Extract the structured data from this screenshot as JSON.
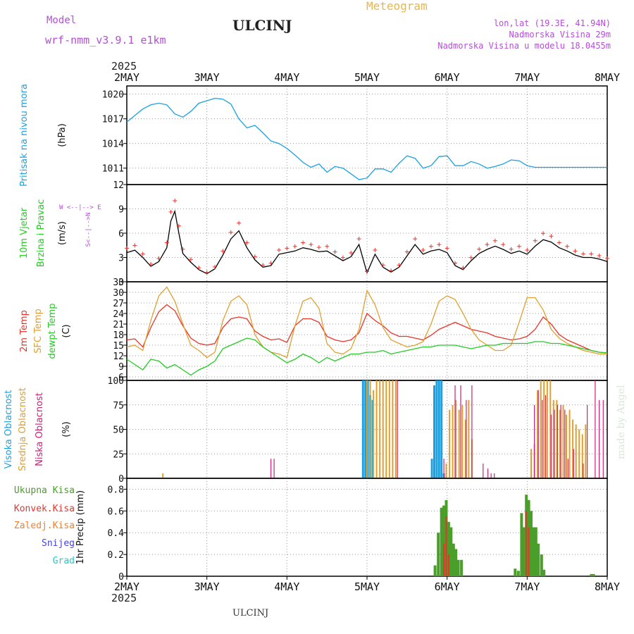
{
  "header": {
    "model_label": "Model",
    "model_name": "wrf-nmm_v3.9.1 e1km",
    "station": "ULCINJ",
    "meteogram": "Meteogram",
    "lonlat": "lon,lat (19.3E, 41.94N)",
    "elevation": "Nadmorska Visina 29m",
    "model_elevation": "Nadmorska Visina u modelu 18.0455m",
    "year_top": "2025",
    "year_bottom": "2025",
    "footer": "ULCINJ",
    "watermark": "made by Angel"
  },
  "colors": {
    "pressure": "#1ba1e2",
    "t2m": "#e8342b",
    "tsfc": "#e0a030",
    "dewpt": "#22cc22",
    "wind_speed": "#000000",
    "gust_marker": "#e8342b",
    "high_cloud": "#1ba1e2",
    "mid_cloud": "#e0a030",
    "low_cloud": "#cc2277",
    "precip_total": "#4a9e2a",
    "precip_conv": "#e8342b",
    "precip_large": "#f08030",
    "snow": "#4444dd",
    "hail": "#22cccc"
  },
  "chart_data": [
    {
      "type": "line",
      "panel": "pressure",
      "ylabel": "(hPa)",
      "side_labels": [
        "Pritisak na nivou mora"
      ],
      "x_ticks": [
        "2MAY",
        "3MAY",
        "4MAY",
        "5MAY",
        "6MAY",
        "7MAY",
        "8MAY"
      ],
      "ylim": [
        1009,
        1021
      ],
      "yticks": [
        1011,
        1014,
        1017,
        1020
      ],
      "grid": true,
      "series": [
        {
          "name": "Pritisak na nivou mora",
          "x": [
            0,
            0.1,
            0.2,
            0.3,
            0.4,
            0.5,
            0.6,
            0.7,
            0.8,
            0.9,
            1.0,
            1.1,
            1.2,
            1.3,
            1.4,
            1.5,
            1.6,
            1.7,
            1.8,
            1.9,
            2.0,
            2.1,
            2.2,
            2.3,
            2.4,
            2.5,
            2.6,
            2.7,
            2.8,
            2.9,
            3.0,
            3.1,
            3.2,
            3.3,
            3.4,
            3.5,
            3.6,
            3.7,
            3.8,
            3.9,
            4.0,
            4.1,
            4.2,
            4.3,
            4.4,
            4.5,
            4.6,
            4.7,
            4.8,
            4.9,
            5.0,
            5.1,
            5.2,
            5.3,
            5.4,
            5.5,
            5.6,
            5.7,
            5.8,
            5.9,
            6.0
          ],
          "values": [
            1016.6,
            1017.4,
            1018.2,
            1018.7,
            1018.9,
            1018.7,
            1017.6,
            1017.2,
            1017.9,
            1018.9,
            1019.2,
            1019.5,
            1019.4,
            1018.8,
            1017.0,
            1015.9,
            1016.2,
            1015.3,
            1014.3,
            1014.0,
            1013.4,
            1012.6,
            1011.7,
            1011.1,
            1011.5,
            1010.5,
            1011.2,
            1011.0,
            1010.3,
            1009.6,
            1009.8,
            1010.9,
            1010.9,
            1010.5,
            1011.6,
            1012.5,
            1012.2,
            1011.0,
            1011.3,
            1012.4,
            1012.5,
            1011.3,
            1011.3,
            1011.8,
            1011.5,
            1011.0,
            1011.2,
            1011.5,
            1012.0,
            1011.9,
            1011.3,
            1011.1,
            1011.1,
            1011.1,
            1011.1,
            1011.1,
            1011.1,
            1011.1,
            1011.1,
            1011.1,
            1011.1
          ]
        }
      ]
    },
    {
      "type": "line",
      "panel": "wind",
      "ylabel": "(m/s)",
      "side_labels": [
        "10m Vjetar",
        "Brzina i Pravac"
      ],
      "compass": "W  <--|-->  E",
      "compass_ns": "S<--|-->N",
      "ylim": [
        0,
        12
      ],
      "yticks": [
        0,
        3,
        6,
        9,
        12
      ],
      "grid": true,
      "series": [
        {
          "name": "Brzina",
          "x": [
            0,
            0.1,
            0.2,
            0.3,
            0.4,
            0.5,
            0.55,
            0.6,
            0.65,
            0.7,
            0.8,
            0.9,
            1.0,
            1.1,
            1.2,
            1.3,
            1.4,
            1.5,
            1.6,
            1.7,
            1.8,
            1.9,
            2.0,
            2.1,
            2.2,
            2.3,
            2.4,
            2.5,
            2.6,
            2.7,
            2.8,
            2.9,
            3.0,
            3.1,
            3.2,
            3.3,
            3.4,
            3.5,
            3.6,
            3.7,
            3.8,
            3.9,
            4.0,
            4.1,
            4.2,
            4.3,
            4.4,
            4.5,
            4.6,
            4.7,
            4.8,
            4.9,
            5.0,
            5.1,
            5.2,
            5.3,
            5.4,
            5.5,
            5.6,
            5.7,
            5.8,
            5.9,
            6.0
          ],
          "values": [
            3.6,
            3.9,
            3.0,
            1.9,
            2.5,
            4.2,
            7.5,
            8.7,
            6.0,
            3.5,
            2.4,
            1.5,
            1.0,
            1.6,
            3.3,
            5.3,
            6.3,
            4.2,
            2.7,
            1.8,
            2.0,
            3.4,
            3.6,
            3.8,
            4.2,
            4.0,
            3.7,
            3.8,
            3.2,
            2.6,
            3.1,
            4.6,
            1.1,
            3.4,
            1.8,
            1.2,
            1.8,
            3.2,
            4.6,
            3.4,
            3.8,
            4.0,
            3.6,
            2.0,
            1.5,
            2.6,
            3.5,
            4.0,
            4.4,
            4.0,
            3.5,
            3.8,
            3.4,
            4.4,
            5.2,
            4.9,
            4.2,
            3.8,
            3.3,
            3.0,
            3.0,
            2.8,
            2.5
          ]
        }
      ]
    },
    {
      "type": "line",
      "panel": "temperature",
      "ylabel": "(C)",
      "side_labels": [
        "2m Temp",
        "SFC Temp",
        "dewpt Temp"
      ],
      "ylim": [
        5,
        33
      ],
      "yticks": [
        6,
        9,
        12,
        15,
        18,
        21,
        24,
        27,
        30,
        33
      ],
      "grid": true,
      "series": [
        {
          "name": "2m Temp",
          "x": [
            0,
            0.1,
            0.2,
            0.3,
            0.4,
            0.5,
            0.6,
            0.7,
            0.8,
            0.9,
            1.0,
            1.1,
            1.2,
            1.3,
            1.4,
            1.5,
            1.6,
            1.7,
            1.8,
            1.9,
            2.0,
            2.1,
            2.2,
            2.3,
            2.4,
            2.5,
            2.6,
            2.7,
            2.8,
            2.9,
            3.0,
            3.1,
            3.2,
            3.3,
            3.4,
            3.5,
            3.6,
            3.7,
            3.8,
            3.9,
            4.0,
            4.1,
            4.2,
            4.3,
            4.4,
            4.5,
            4.6,
            4.7,
            4.8,
            4.9,
            5.0,
            5.1,
            5.2,
            5.3,
            5.4,
            5.5,
            5.6,
            5.7,
            5.8,
            5.9,
            6.0
          ],
          "values": [
            16.5,
            16.8,
            14.5,
            20.0,
            24.5,
            26.5,
            24.8,
            20.5,
            17.0,
            15.5,
            15.0,
            15.5,
            20.0,
            22.5,
            23.0,
            22.5,
            19.0,
            17.5,
            16.5,
            16.8,
            15.8,
            20.5,
            22.5,
            22.5,
            21.5,
            17.5,
            16.5,
            16.0,
            16.5,
            18.5,
            24.0,
            22.0,
            20.5,
            18.5,
            17.5,
            17.5,
            17.0,
            16.5,
            17.8,
            19.5,
            20.5,
            21.5,
            20.5,
            19.5,
            19.0,
            18.5,
            17.5,
            17.0,
            16.5,
            16.8,
            17.5,
            19.5,
            23.0,
            21.0,
            18.0,
            16.5,
            15.5,
            14.5,
            13.5,
            13.0,
            12.8
          ]
        },
        {
          "name": "SFC Temp",
          "x": [
            0,
            0.1,
            0.2,
            0.3,
            0.4,
            0.5,
            0.6,
            0.7,
            0.8,
            0.9,
            1.0,
            1.1,
            1.2,
            1.3,
            1.4,
            1.5,
            1.6,
            1.7,
            1.8,
            1.9,
            2.0,
            2.1,
            2.2,
            2.3,
            2.4,
            2.5,
            2.6,
            2.7,
            2.8,
            2.9,
            3.0,
            3.1,
            3.2,
            3.3,
            3.4,
            3.5,
            3.6,
            3.7,
            3.8,
            3.9,
            4.0,
            4.1,
            4.2,
            4.3,
            4.4,
            4.5,
            4.6,
            4.7,
            4.8,
            4.9,
            5.0,
            5.1,
            5.2,
            5.3,
            5.4,
            5.5,
            5.6,
            5.7,
            5.8,
            5.9,
            6.0
          ],
          "values": [
            14.5,
            15.0,
            13.5,
            22.0,
            29.0,
            31.5,
            27.5,
            21.0,
            15.0,
            13.5,
            11.5,
            13.0,
            22.0,
            27.5,
            29.0,
            26.5,
            18.0,
            14.5,
            13.0,
            12.5,
            11.5,
            20.5,
            27.5,
            28.5,
            25.5,
            15.5,
            13.0,
            12.5,
            14.0,
            19.5,
            30.5,
            26.5,
            20.0,
            16.5,
            15.5,
            14.5,
            15.0,
            16.0,
            21.0,
            27.5,
            29.0,
            28.0,
            24.0,
            19.5,
            16.5,
            15.0,
            13.5,
            13.5,
            15.0,
            21.5,
            28.5,
            28.5,
            25.0,
            19.5,
            17.0,
            15.5,
            14.5,
            13.5,
            13.0,
            12.5,
            12.5
          ]
        },
        {
          "name": "dewpt Temp",
          "x": [
            0,
            0.1,
            0.2,
            0.3,
            0.4,
            0.5,
            0.6,
            0.7,
            0.8,
            0.9,
            1.0,
            1.1,
            1.2,
            1.3,
            1.4,
            1.5,
            1.6,
            1.7,
            1.8,
            1.9,
            2.0,
            2.1,
            2.2,
            2.3,
            2.4,
            2.5,
            2.6,
            2.7,
            2.8,
            2.9,
            3.0,
            3.1,
            3.2,
            3.3,
            3.4,
            3.5,
            3.6,
            3.7,
            3.8,
            3.9,
            4.0,
            4.1,
            4.2,
            4.3,
            4.4,
            4.5,
            4.6,
            4.7,
            4.8,
            4.9,
            5.0,
            5.1,
            5.2,
            5.3,
            5.4,
            5.5,
            5.6,
            5.7,
            5.8,
            5.9,
            6.0
          ],
          "values": [
            11.0,
            9.5,
            8.0,
            11.0,
            10.5,
            8.5,
            9.5,
            8.0,
            6.5,
            8.0,
            9.0,
            10.5,
            14.0,
            15.0,
            16.0,
            17.0,
            16.5,
            14.5,
            13.0,
            11.5,
            10.0,
            11.0,
            12.5,
            11.5,
            10.0,
            11.5,
            10.5,
            11.5,
            12.5,
            12.5,
            13.0,
            13.0,
            13.5,
            12.5,
            13.0,
            13.5,
            14.0,
            14.5,
            14.5,
            15.0,
            15.0,
            15.0,
            14.5,
            14.0,
            14.5,
            15.0,
            15.0,
            15.5,
            15.5,
            15.5,
            15.5,
            16.0,
            16.0,
            15.5,
            15.5,
            15.0,
            14.5,
            14.0,
            13.5,
            13.0,
            12.8
          ]
        }
      ]
    },
    {
      "type": "bar",
      "panel": "cloud",
      "ylabel": "(%)",
      "side_labels": [
        "Visoka Oblacnost",
        "Srednja Oblacnost",
        "Niska Oblacnost"
      ],
      "ylim": [
        0,
        100
      ],
      "yticks": [
        0,
        25,
        50,
        75,
        100
      ],
      "grid": true,
      "series": [
        {
          "name": "Visoka Oblacnost",
          "x": [
            2.95,
            2.98,
            3.01,
            3.04,
            3.07,
            3.81,
            3.84,
            3.87,
            3.9,
            3.93,
            3.96
          ],
          "values": [
            100,
            100,
            100,
            85,
            80,
            20,
            95,
            100,
            100,
            100,
            5
          ]
        },
        {
          "name": "Srednja Oblacnost",
          "x": [
            0.45,
            3.0,
            3.04,
            3.08,
            3.12,
            3.16,
            3.2,
            3.24,
            3.28,
            3.32,
            3.36,
            3.99,
            4.03,
            4.07,
            4.11,
            4.15,
            4.19,
            4.23,
            4.27,
            4.31,
            5.05,
            5.09,
            5.13,
            5.17,
            5.21,
            5.25,
            5.29,
            5.33,
            5.37,
            5.41,
            5.45,
            5.49,
            5.53,
            5.57,
            5.61,
            5.65,
            5.69,
            5.73
          ],
          "values": [
            5,
            100,
            100,
            90,
            100,
            100,
            100,
            100,
            100,
            100,
            100,
            15,
            70,
            75,
            80,
            70,
            75,
            60,
            80,
            40,
            30,
            35,
            90,
            100,
            100,
            100,
            100,
            80,
            80,
            70,
            75,
            65,
            70,
            60,
            55,
            50,
            45,
            55
          ]
        },
        {
          "name": "Niska Oblacnost",
          "x": [
            1.8,
            1.84,
            3.38,
            3.96,
            4.1,
            4.17,
            4.24,
            4.31,
            4.45,
            4.51,
            4.55,
            4.59,
            5.09,
            5.14,
            5.19,
            5.23,
            5.3,
            5.34,
            5.38,
            5.42,
            5.47,
            5.51,
            5.58,
            5.7,
            5.75,
            5.85,
            5.9,
            5.95
          ],
          "values": [
            20,
            20,
            100,
            20,
            95,
            95,
            80,
            95,
            15,
            10,
            5,
            5,
            75,
            90,
            80,
            85,
            65,
            70,
            75,
            75,
            70,
            20,
            30,
            15,
            75,
            100,
            80,
            80
          ]
        }
      ]
    },
    {
      "type": "bar",
      "panel": "precip",
      "ylabel": "1hr Precip (mm)",
      "side_labels": [
        "Ukupna Kisa",
        "Konvek.Kisa",
        "Zaledj.Kisa",
        "Snijeg",
        "Grad"
      ],
      "x_ticks": [
        "2MAY",
        "3MAY",
        "4MAY",
        "5MAY",
        "6MAY",
        "7MAY",
        "8MAY"
      ],
      "ylim": [
        0,
        0.9
      ],
      "yticks": [
        0,
        0.2,
        0.4,
        0.6,
        0.8
      ],
      "grid": true,
      "series": [
        {
          "name": "Ukupna Kisa",
          "x": [
            3.85,
            3.89,
            3.93,
            3.96,
            3.99,
            4.02,
            4.05,
            4.08,
            4.11,
            4.14,
            4.18,
            4.85,
            4.89,
            4.93,
            4.96,
            4.99,
            5.02,
            5.05,
            5.08,
            5.11,
            5.14,
            5.18,
            5.21,
            5.8,
            5.83
          ],
          "values": [
            0.1,
            0.4,
            0.63,
            0.65,
            0.7,
            0.5,
            0.45,
            0.3,
            0.25,
            0.15,
            0.15,
            0.07,
            0.05,
            0.58,
            0.45,
            0.75,
            0.7,
            0.6,
            0.45,
            0.45,
            0.3,
            0.2,
            0.06,
            0.02,
            0.02
          ]
        },
        {
          "name": "Konvek.Kisa",
          "x": [
            3.96,
            3.99,
            4.02,
            4.99,
            5.02
          ],
          "values": [
            0.3,
            0.55,
            0.2,
            0.6,
            0.45
          ]
        }
      ]
    }
  ]
}
